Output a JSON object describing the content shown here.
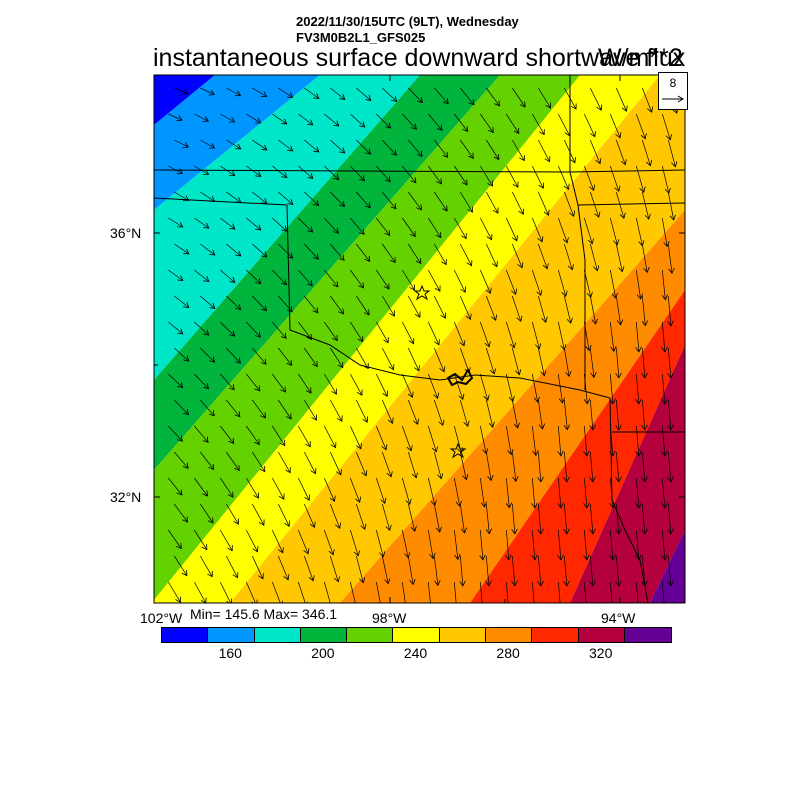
{
  "header": {
    "line1": "2022/11/30/15UTC (9LT), Wednesday",
    "line2": "FV3M0B2L1_GFS025",
    "title": "instantaneous surface downward shortwave flux",
    "units": "W/m**2"
  },
  "reference_vector": {
    "label": "8"
  },
  "map": {
    "lat_labels": [
      "36°N",
      "32°N"
    ],
    "lon_labels": [
      "102°W",
      "98°W",
      "94°W"
    ],
    "minmax": "Min= 145.6 Max= 346.1",
    "markers": [
      "star-marker",
      "star-marker"
    ]
  },
  "legend": {
    "colors": [
      "#0000ff",
      "#0096ff",
      "#00e6c8",
      "#00b43c",
      "#64d200",
      "#ffff00",
      "#ffc800",
      "#ff8c00",
      "#ff2800",
      "#b4003c",
      "#640096"
    ],
    "ticks": [
      "160",
      "200",
      "240",
      "280",
      "320"
    ]
  },
  "colors": {
    "frame": "#000000",
    "background": "#ffffff"
  }
}
